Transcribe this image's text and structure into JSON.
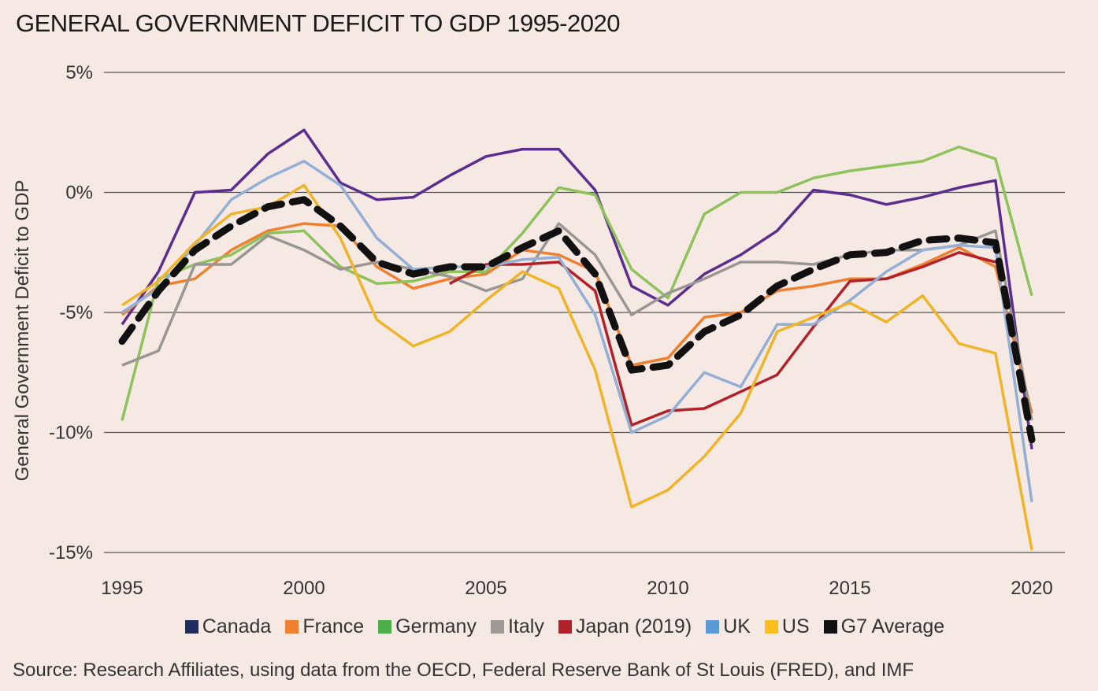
{
  "chart_data": {
    "type": "line",
    "title": "GENERAL GOVERNMENT DEFICIT TO GDP 1995-2020",
    "xlabel": "",
    "ylabel": "General Government Deficit to GDP",
    "source": "Source: Research Affiliates, using data from the OECD, Federal Reserve Bank of St Louis (FRED), and IMF",
    "xlim": [
      1995,
      2020
    ],
    "ylim": [
      -15,
      5
    ],
    "grid": "horizontal",
    "legend_position": "bottom",
    "x_ticks": [
      "1995",
      "2000",
      "2005",
      "2010",
      "2015",
      "2020"
    ],
    "y_ticks": [
      "5%",
      "0%",
      "-5%",
      "-10%",
      "-15%"
    ],
    "y_tick_values": [
      5,
      0,
      -5,
      -10,
      -15
    ],
    "x": [
      1995,
      1996,
      1997,
      1998,
      1999,
      2000,
      2001,
      2002,
      2003,
      2004,
      2005,
      2006,
      2007,
      2008,
      2009,
      2010,
      2011,
      2012,
      2013,
      2014,
      2015,
      2016,
      2017,
      2018,
      2019,
      2020
    ],
    "series": [
      {
        "name": "Canada",
        "legend_color": "#1f2d5c",
        "line_color": "#5b2d8e",
        "dashed": false,
        "values": [
          -5.5,
          -3.3,
          0.0,
          0.1,
          1.6,
          2.6,
          0.4,
          -0.3,
          -0.2,
          0.7,
          1.5,
          1.8,
          1.8,
          0.1,
          -3.9,
          -4.7,
          -3.4,
          -2.6,
          -1.6,
          0.1,
          -0.1,
          -0.5,
          -0.2,
          0.2,
          0.5,
          -10.7
        ]
      },
      {
        "name": "France",
        "legend_color": "#ee8030",
        "line_color": "#ee8030",
        "dashed": false,
        "values": [
          -5.1,
          -3.9,
          -3.6,
          -2.4,
          -1.6,
          -1.3,
          -1.4,
          -3.1,
          -4.0,
          -3.6,
          -3.4,
          -2.4,
          -2.6,
          -3.3,
          -7.2,
          -6.9,
          -5.2,
          -5.0,
          -4.1,
          -3.9,
          -3.6,
          -3.6,
          -3.0,
          -2.3,
          -3.1,
          -9.2
        ]
      },
      {
        "name": "Germany",
        "legend_color": "#4caf48",
        "line_color": "#8dc35a",
        "dashed": false,
        "values": [
          -9.5,
          -3.6,
          -3.0,
          -2.6,
          -1.7,
          -1.6,
          -3.1,
          -3.8,
          -3.7,
          -3.3,
          -3.3,
          -1.7,
          0.2,
          -0.1,
          -3.2,
          -4.4,
          -0.9,
          0.0,
          0.0,
          0.6,
          0.9,
          1.1,
          1.3,
          1.9,
          1.4,
          -4.3
        ]
      },
      {
        "name": "Italy",
        "legend_color": "#a09a96",
        "line_color": "#9a9694",
        "dashed": false,
        "values": [
          -7.2,
          -6.6,
          -3.0,
          -3.0,
          -1.8,
          -2.4,
          -3.2,
          -2.9,
          -3.2,
          -3.5,
          -4.1,
          -3.6,
          -1.3,
          -2.6,
          -5.1,
          -4.2,
          -3.6,
          -2.9,
          -2.9,
          -3.0,
          -2.6,
          -2.4,
          -2.4,
          -2.2,
          -1.6,
          -9.5
        ]
      },
      {
        "name": "Japan (2019)",
        "legend_color": "#b22028",
        "line_color": "#b22028",
        "dashed": false,
        "values": [
          null,
          null,
          null,
          null,
          null,
          null,
          null,
          null,
          null,
          -3.8,
          -3.0,
          -3.0,
          -2.9,
          -4.1,
          -9.7,
          -9.1,
          -9.0,
          -8.3,
          -7.6,
          -5.6,
          -3.7,
          -3.6,
          -3.1,
          -2.5,
          -2.9,
          null
        ]
      },
      {
        "name": "UK",
        "legend_color": "#5a9bd5",
        "line_color": "#93afd6",
        "dashed": false,
        "values": [
          -5.0,
          -4.0,
          -2.2,
          -0.3,
          0.6,
          1.3,
          0.3,
          -1.9,
          -3.2,
          -3.1,
          -3.1,
          -2.8,
          -2.7,
          -5.1,
          -10.0,
          -9.3,
          -7.5,
          -8.1,
          -5.5,
          -5.5,
          -4.5,
          -3.3,
          -2.4,
          -2.2,
          -2.3,
          -12.9
        ]
      },
      {
        "name": "US",
        "legend_color": "#f9be1e",
        "line_color": "#f0b429",
        "dashed": false,
        "values": [
          -4.7,
          -3.7,
          -2.1,
          -0.9,
          -0.6,
          0.3,
          -1.9,
          -5.3,
          -6.4,
          -5.8,
          -4.5,
          -3.3,
          -4.0,
          -7.4,
          -13.1,
          -12.4,
          -11.0,
          -9.2,
          -5.8,
          -5.2,
          -4.6,
          -5.4,
          -4.3,
          -6.3,
          -6.7,
          -14.9
        ]
      },
      {
        "name": "G7 Average",
        "legend_color": "#111111",
        "line_color": "#111111",
        "dashed": true,
        "values": [
          -6.2,
          -4.1,
          -2.4,
          -1.4,
          -0.6,
          -0.3,
          -1.4,
          -2.9,
          -3.4,
          -3.1,
          -3.1,
          -2.3,
          -1.6,
          -3.4,
          -7.4,
          -7.2,
          -5.8,
          -5.1,
          -3.9,
          -3.2,
          -2.6,
          -2.5,
          -2.0,
          -1.9,
          -2.1,
          -10.3
        ]
      }
    ]
  }
}
